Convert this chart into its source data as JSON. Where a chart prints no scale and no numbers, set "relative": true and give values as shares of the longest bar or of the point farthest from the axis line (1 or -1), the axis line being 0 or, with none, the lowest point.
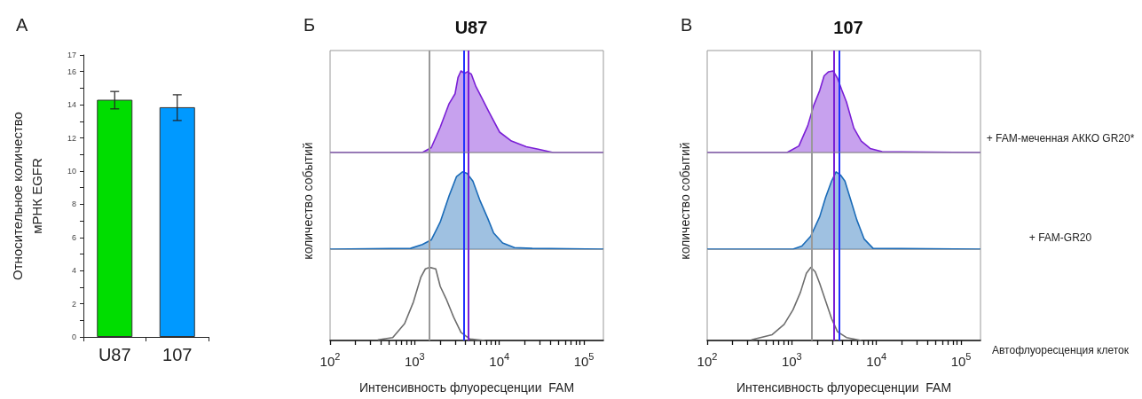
{
  "chart_data": [
    {
      "type": "bar",
      "categories": [
        "U87",
        "107"
      ],
      "colors": [
        "#00dd00",
        "#0099ff"
      ],
      "values": [
        14.3,
        13.85
      ],
      "errors": [
        [
          13.75,
          14.8
        ],
        [
          13.05,
          14.6
        ]
      ],
      "ylabel": "Относительное количество\nмРНК EGFR",
      "ylim": [
        0,
        17
      ],
      "yticks": [
        0,
        {
          "value": 1,
          "label": null
        },
        2,
        {
          "value": 3,
          "label": null
        },
        4,
        {
          "value": 5,
          "label": null
        },
        6,
        {
          "value": 7,
          "label": null
        },
        8,
        {
          "value": 9,
          "label": null
        },
        10,
        {
          "value": 11,
          "label": null
        },
        12,
        {
          "value": 13,
          "label": null
        },
        14,
        {
          "value": 15,
          "label": null
        },
        16,
        17
      ],
      "annotations": [
        "А"
      ]
    },
    {
      "type": "area",
      "title": "U87",
      "annotations": [
        "Б"
      ],
      "relative": true,
      "log": "x",
      "tick_labels": false,
      "xlim": [
        100,
        170000
      ],
      "series": [
        {
          "type": "area",
          "color": "#7a1fd6",
          "x": [
            100,
            1233,
            1570,
            2004,
            2553,
            3000,
            3251,
            3524,
            3882,
            4217,
            4677,
            5284,
            6209,
            7603,
            10093,
            13930,
            20840,
            28840,
            43150,
            170000
          ],
          "values": [
            0,
            0,
            0.06,
            0.31,
            0.6,
            0.72,
            0.92,
            1,
            0.97,
            0.99,
            0.96,
            0.81,
            0.67,
            0.49,
            0.25,
            0.14,
            0.07,
            0.04,
            0,
            0
          ]
        }
      ],
      "ref_lines": [
        {
          "axis": "x",
          "value": 1500,
          "color": "#999999"
        },
        {
          "axis": "x",
          "value": 3800,
          "color": "#2233ff"
        },
        {
          "axis": "x",
          "value": 4300,
          "color": "#7a1fd6"
        }
      ]
    },
    {
      "type": "area",
      "ylabel": "количество событий",
      "relative": true,
      "log": "x",
      "tick_labels": false,
      "xlim": [
        100,
        170000
      ],
      "series": [
        {
          "type": "area",
          "color": "#1a6bb8",
          "x": [
            100,
            893,
            1233,
            1570,
            2004,
            2553,
            3126,
            3673,
            4150,
            4875,
            5957,
            7295,
            8570,
            10940,
            15100,
            24490,
            170000
          ],
          "values": [
            0,
            0.01,
            0.06,
            0.12,
            0.35,
            0.69,
            0.94,
            1,
            0.98,
            0.88,
            0.62,
            0.4,
            0.21,
            0.08,
            0.02,
            0.01,
            0
          ]
        }
      ],
      "ref_lines": [
        {
          "axis": "x",
          "value": 1500,
          "color": "#999999"
        },
        {
          "axis": "x",
          "value": 3800,
          "color": "#2233ff"
        },
        {
          "axis": "x",
          "value": 4300,
          "color": "#7a1fd6"
        }
      ]
    },
    {
      "type": "line",
      "xlabel": "Интенсивность флуоресценции  FAM",
      "relative": true,
      "log": "x",
      "tick_labels": "x",
      "xlim": [
        100,
        170000
      ],
      "xticks": [
        {
          "value": 100,
          "label": "10$^{2}$"
        },
        {
          "value": 200,
          "label": null
        },
        {
          "value": 300,
          "label": null
        },
        {
          "value": 400,
          "label": null
        },
        {
          "value": 500,
          "label": null
        },
        {
          "value": 600,
          "label": null
        },
        {
          "value": 700,
          "label": null
        },
        {
          "value": 800,
          "label": null
        },
        {
          "value": 900,
          "label": null
        },
        {
          "value": 1000,
          "label": "10$^{3}$"
        },
        {
          "value": 2000,
          "label": null
        },
        {
          "value": 3000,
          "label": null
        },
        {
          "value": 4000,
          "label": null
        },
        {
          "value": 5000,
          "label": null
        },
        {
          "value": 6000,
          "label": null
        },
        {
          "value": 7000,
          "label": null
        },
        {
          "value": 8000,
          "label": null
        },
        {
          "value": 9000,
          "label": null
        },
        {
          "value": 10000,
          "label": "10$^{4}$"
        },
        {
          "value": 20000,
          "label": null
        },
        {
          "value": 30000,
          "label": null
        },
        {
          "value": 40000,
          "label": null
        },
        {
          "value": 50000,
          "label": null
        },
        {
          "value": 60000,
          "label": null
        },
        {
          "value": 70000,
          "label": null
        },
        {
          "value": 80000,
          "label": null
        },
        {
          "value": 90000,
          "label": null
        },
        {
          "value": 100000,
          "label": "10$^{5}$"
        }
      ],
      "series": [
        {
          "type": "line",
          "color": "#6e6e6e",
          "x": [
            367,
            550,
            760,
            968,
            1186,
            1337,
            1510,
            1774,
            2004,
            2355,
            2884,
            3524,
            4498,
            6730
          ],
          "values": [
            0.01,
            0.04,
            0.23,
            0.53,
            0.87,
            0.98,
            1,
            0.98,
            0.74,
            0.57,
            0.32,
            0.11,
            0.02,
            0
          ]
        }
      ],
      "ref_lines": [
        {
          "axis": "x",
          "value": 1500,
          "color": "#999999"
        },
        {
          "axis": "x",
          "value": 3800,
          "color": "#2233ff"
        },
        {
          "axis": "x",
          "value": 4300,
          "color": "#7a1fd6"
        }
      ]
    },
    {
      "type": "area",
      "title": "107",
      "annotations": [
        "В"
      ],
      "relative": true,
      "log": "x",
      "tick_labels": false,
      "xlim": [
        100,
        170000
      ],
      "series": [
        {
          "type": "area",
          "name": "+ FAM-меченная АККО GR20*",
          "color": "#7a1fd6",
          "x": [
            100,
            879,
            1213,
            1545,
            1820,
            2138,
            2410,
            2723,
            3076,
            3467,
            3917,
            4426,
            5408,
            6622,
            8433,
            11670,
            170000
          ],
          "values": [
            0,
            0,
            0.08,
            0.33,
            0.58,
            0.76,
            0.94,
            0.99,
            1,
            0.91,
            0.76,
            0.62,
            0.3,
            0.14,
            0.05,
            0.01,
            0
          ]
        }
      ],
      "ref_lines": [
        {
          "axis": "x",
          "value": 1700,
          "color": "#999999"
        },
        {
          "axis": "x",
          "value": 3150,
          "color": "#7a1fd6"
        },
        {
          "axis": "x",
          "value": 3600,
          "color": "#2233ff"
        }
      ]
    },
    {
      "type": "area",
      "ylabel": "количество событий",
      "relative": true,
      "log": "x",
      "tick_labels": false,
      "xlim": [
        100,
        170000
      ],
      "series": [
        {
          "type": "area",
          "name": "+ FAM-GR20",
          "color": "#1a6bb8",
          "x": [
            100,
            1033,
            1315,
            1679,
            2138,
            2512,
            2951,
            3334,
            3758,
            4246,
            4989,
            5861,
            7178,
            9141,
            170000
          ],
          "values": [
            0,
            0,
            0.04,
            0.17,
            0.42,
            0.67,
            0.88,
            1,
            0.96,
            0.88,
            0.63,
            0.38,
            0.13,
            0.01,
            0
          ]
        }
      ],
      "ref_lines": [
        {
          "axis": "x",
          "value": 1700,
          "color": "#999999"
        },
        {
          "axis": "x",
          "value": 3150,
          "color": "#7a1fd6"
        },
        {
          "axis": "x",
          "value": 3600,
          "color": "#2233ff"
        }
      ]
    },
    {
      "type": "line",
      "xlabel": "Интенсивность флуоресценции  FAM",
      "relative": true,
      "log": "x",
      "tick_labels": "x",
      "xlim": [
        100,
        170000
      ],
      "xticks": [
        {
          "value": 100,
          "label": "10$^{2}$"
        },
        {
          "value": 200,
          "label": null
        },
        {
          "value": 300,
          "label": null
        },
        {
          "value": 400,
          "label": null
        },
        {
          "value": 500,
          "label": null
        },
        {
          "value": 600,
          "label": null
        },
        {
          "value": 700,
          "label": null
        },
        {
          "value": 800,
          "label": null
        },
        {
          "value": 900,
          "label": null
        },
        {
          "value": 1000,
          "label": "10$^{3}$"
        },
        {
          "value": 2000,
          "label": null
        },
        {
          "value": 3000,
          "label": null
        },
        {
          "value": 4000,
          "label": null
        },
        {
          "value": 5000,
          "label": null
        },
        {
          "value": 6000,
          "label": null
        },
        {
          "value": 7000,
          "label": null
        },
        {
          "value": 8000,
          "label": null
        },
        {
          "value": 9000,
          "label": null
        },
        {
          "value": 10000,
          "label": "10$^{4}$"
        },
        {
          "value": 20000,
          "label": null
        },
        {
          "value": 30000,
          "label": null
        },
        {
          "value": 40000,
          "label": null
        },
        {
          "value": 50000,
          "label": null
        },
        {
          "value": 60000,
          "label": null
        },
        {
          "value": 70000,
          "label": null
        },
        {
          "value": 80000,
          "label": null
        },
        {
          "value": 90000,
          "label": null
        },
        {
          "value": 100000,
          "label": "10$^{5}$"
        }
      ],
      "series": [
        {
          "type": "line",
          "name": "Автофлуоресценция клеток",
          "color": "#6e6e6e",
          "x": [
            333,
            586,
            811,
            1033,
            1265,
            1486,
            1679,
            1892,
            2138,
            2512,
            2951,
            3467,
            4426,
            6622
          ],
          "values": [
            0.01,
            0.08,
            0.22,
            0.42,
            0.66,
            0.92,
            1,
            0.94,
            0.78,
            0.54,
            0.3,
            0.12,
            0.04,
            0
          ]
        }
      ],
      "ref_lines": [
        {
          "axis": "x",
          "value": 1700,
          "color": "#999999"
        },
        {
          "axis": "x",
          "value": 3150,
          "color": "#7a1fd6"
        },
        {
          "axis": "x",
          "value": 3600,
          "color": "#2233ff"
        }
      ]
    }
  ]
}
